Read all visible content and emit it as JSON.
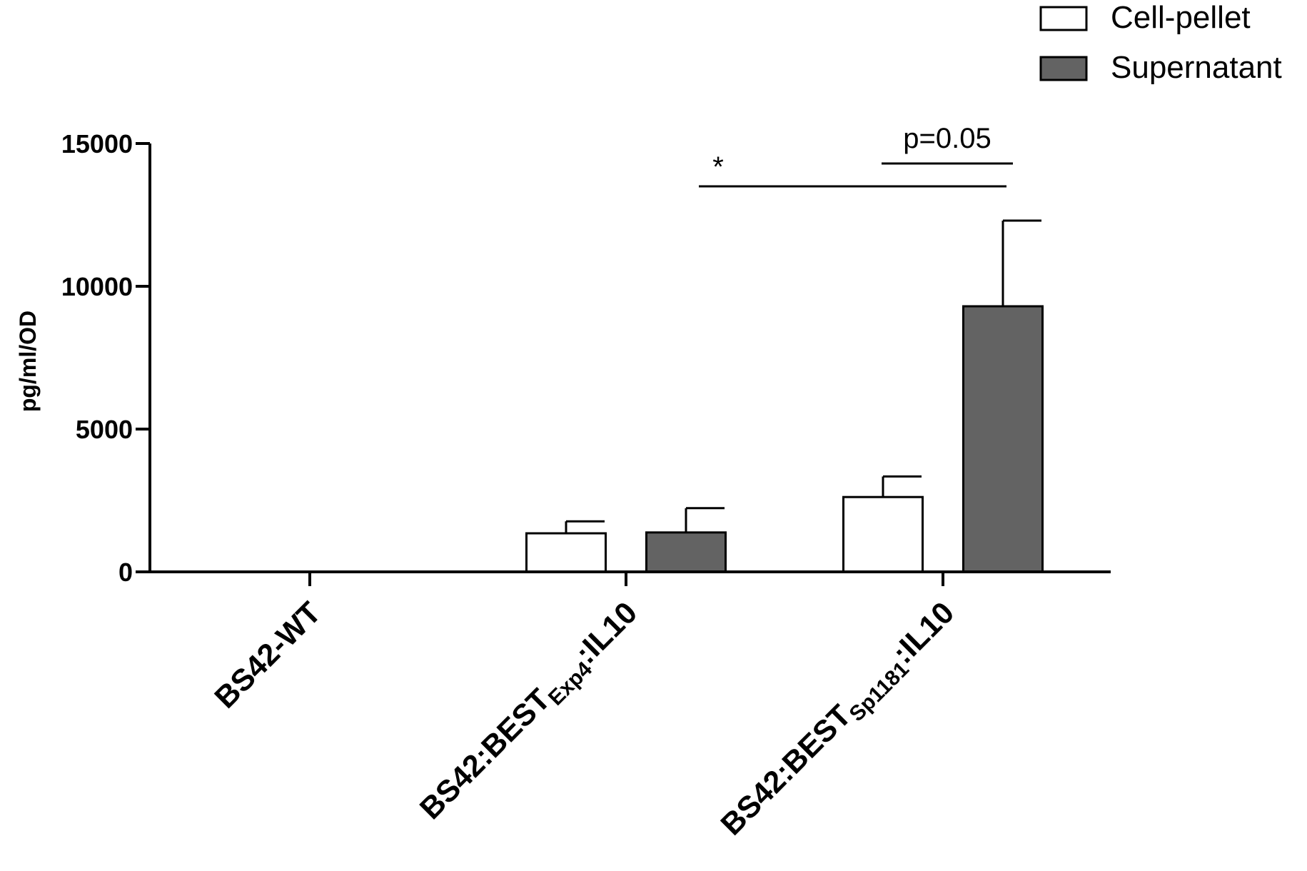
{
  "chart_data": {
    "type": "bar",
    "ylabel": "pg/ml/OD",
    "xlabel": "",
    "ylim": [
      0,
      15000
    ],
    "yticks": [
      "0",
      "5000",
      "10000",
      "15000"
    ],
    "yticks_values": [
      0,
      5000,
      10000,
      15000
    ],
    "categories": [
      {
        "main": "BS42-WT",
        "sub": "",
        "suffix": ""
      },
      {
        "main": "BS42:BEST",
        "sub": "Exp4",
        "suffix": ":IL10"
      },
      {
        "main": "BS42:BEST",
        "sub": "Sp1181",
        "suffix": ":IL10"
      }
    ],
    "series": [
      {
        "name": "Cell-pellet",
        "color": "#ffffff",
        "values": [
          0,
          1350,
          2620
        ],
        "errors": [
          0,
          420,
          720
        ]
      },
      {
        "name": "Supernatant",
        "color": "#636363",
        "values": [
          0,
          1380,
          9300
        ],
        "errors": [
          0,
          850,
          3000
        ]
      }
    ],
    "legend_position": "top-right",
    "annotations": [
      {
        "text": "*",
        "from": {
          "category": 1,
          "series": 1
        },
        "to": {
          "category": 2,
          "series": 1
        },
        "y_value": 13500
      },
      {
        "text": "p=0.05",
        "from": {
          "category": 2,
          "series": 0
        },
        "to": {
          "category": 2,
          "series": 1
        },
        "y_value": 14300
      }
    ],
    "grid": false
  }
}
